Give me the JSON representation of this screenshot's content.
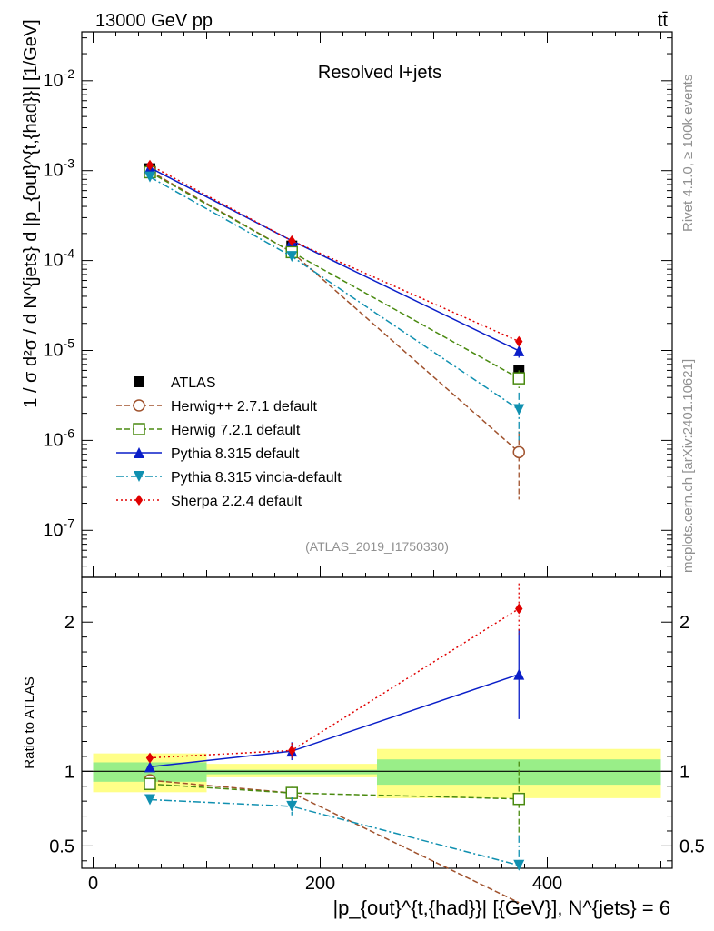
{
  "header": {
    "energy_label": "13000 GeV pp",
    "process_label": "tt̄"
  },
  "side_text": {
    "rivet": "Rivet 4.1.0, ≥ 100k events",
    "mcplots": "mcplots.cern.ch [arXiv:2401.10621]"
  },
  "analysis_id": "(ATLAS_2019_I1750330)",
  "chart_data": [
    {
      "type": "line",
      "panel": "main",
      "title": "Resolved l+jets",
      "ylabel": "1 / σ d²σ / d N^{jets} d |p_{out}^{t,{had}}| [1/GeV]",
      "yscale": "log",
      "ylim": [
        3e-08,
        0.035
      ],
      "xlim": [
        -10,
        510
      ],
      "y_tick_labels": [
        "10^-7",
        "10^-6",
        "10^-5",
        "10^-4",
        "10^-3",
        "10^-2"
      ],
      "x": [
        50,
        175,
        375
      ],
      "bins": [
        [
          0,
          100
        ],
        [
          100,
          250
        ],
        [
          250,
          500
        ]
      ],
      "series": [
        {
          "name": "ATLAS",
          "values": [
            0.00105,
            0.000145,
            6e-06
          ],
          "errors": [
            5e-05,
            8e-06,
            6e-07
          ],
          "color": "#000000",
          "marker": "square-filled",
          "dash": "none"
        },
        {
          "name": "Herwig++ 2.7.1 default",
          "values": [
            0.00099,
            0.000124,
            7.4e-07
          ],
          "errors": [
            2e-05,
            5e-06,
            5.2e-07
          ],
          "color": "#a0522d",
          "marker": "circle-open",
          "dash": "6,3"
        },
        {
          "name": "Herwig 7.2.1 default",
          "values": [
            0.00096,
            0.000124,
            4.9e-06
          ],
          "errors": [
            2e-05,
            4e-06,
            1.1e-06
          ],
          "color": "#4a8a10",
          "marker": "square-open",
          "dash": "6,3"
        },
        {
          "name": "Pythia 8.315 default",
          "values": [
            0.00108,
            0.000166,
            9.9e-06
          ],
          "errors": [
            2e-05,
            6e-06,
            1.6e-06
          ],
          "color": "#0a1ec8",
          "marker": "triangle-up-filled",
          "dash": "none"
        },
        {
          "name": "Pythia 8.315 vincia-default",
          "values": [
            0.00085,
            0.000111,
            2.2e-06
          ],
          "errors": [
            2e-05,
            5e-06,
            1.2e-06
          ],
          "color": "#1090b0",
          "marker": "triangle-down-filled",
          "dash": "8,3,2,3"
        },
        {
          "name": "Sherpa 2.2.4 default",
          "values": [
            0.00115,
            0.000166,
            1.26e-05
          ],
          "errors": [
            2e-05,
            6e-06,
            1.2e-06
          ],
          "color": "#e00000",
          "marker": "diamond-filled",
          "dash": "2,3"
        }
      ]
    },
    {
      "type": "line",
      "panel": "ratio",
      "ylabel": "Ratio to ATLAS",
      "xlabel": "|p_{out}^{t,{had}}| [{GeV}], N^{jets} = 6",
      "yscale": "linear",
      "ylim": [
        0.35,
        2.3
      ],
      "xlim": [
        -10,
        510
      ],
      "x_tick_labels": [
        "0",
        "200",
        "400"
      ],
      "y_tick_labels": [
        "0.5",
        "1",
        "2"
      ],
      "bands": [
        {
          "range": [
            0,
            100
          ],
          "inner": [
            0.93,
            1.06
          ],
          "outer": [
            0.86,
            1.12
          ]
        },
        {
          "range": [
            100,
            250
          ],
          "inner": [
            0.98,
            1.01
          ],
          "outer": [
            0.96,
            1.05
          ]
        },
        {
          "range": [
            250,
            500
          ],
          "inner": [
            0.91,
            1.08
          ],
          "outer": [
            0.82,
            1.15
          ]
        }
      ],
      "x": [
        50,
        175,
        375
      ],
      "series": [
        {
          "name": "Herwig++ 2.7.1 default",
          "values": [
            0.94,
            0.855,
            0.12
          ],
          "errors": [
            0.02,
            0.04,
            0.0
          ],
          "color": "#a0522d",
          "marker": "circle-open",
          "dash": "6,3"
        },
        {
          "name": "Herwig 7.2.1 default",
          "values": [
            0.915,
            0.855,
            0.815
          ],
          "errors": [
            0.02,
            0.04,
            0.25
          ],
          "color": "#4a8a10",
          "marker": "square-open",
          "dash": "6,3"
        },
        {
          "name": "Pythia 8.315 default",
          "values": [
            1.03,
            1.135,
            1.65
          ],
          "errors": [
            0.02,
            0.06,
            0.3
          ],
          "color": "#0a1ec8",
          "marker": "triangle-up-filled",
          "dash": "none"
        },
        {
          "name": "Pythia 8.315 vincia-default",
          "values": [
            0.81,
            0.765,
            0.37
          ],
          "errors": [
            0.02,
            0.06,
            0.2
          ],
          "color": "#1090b0",
          "marker": "triangle-down-filled",
          "dash": "8,3,2,3"
        },
        {
          "name": "Sherpa 2.2.4 default",
          "values": [
            1.09,
            1.14,
            2.09
          ],
          "errors": [
            0.02,
            0.05,
            0.17
          ],
          "color": "#e00000",
          "marker": "diamond-filled",
          "dash": "2,3"
        }
      ]
    }
  ]
}
